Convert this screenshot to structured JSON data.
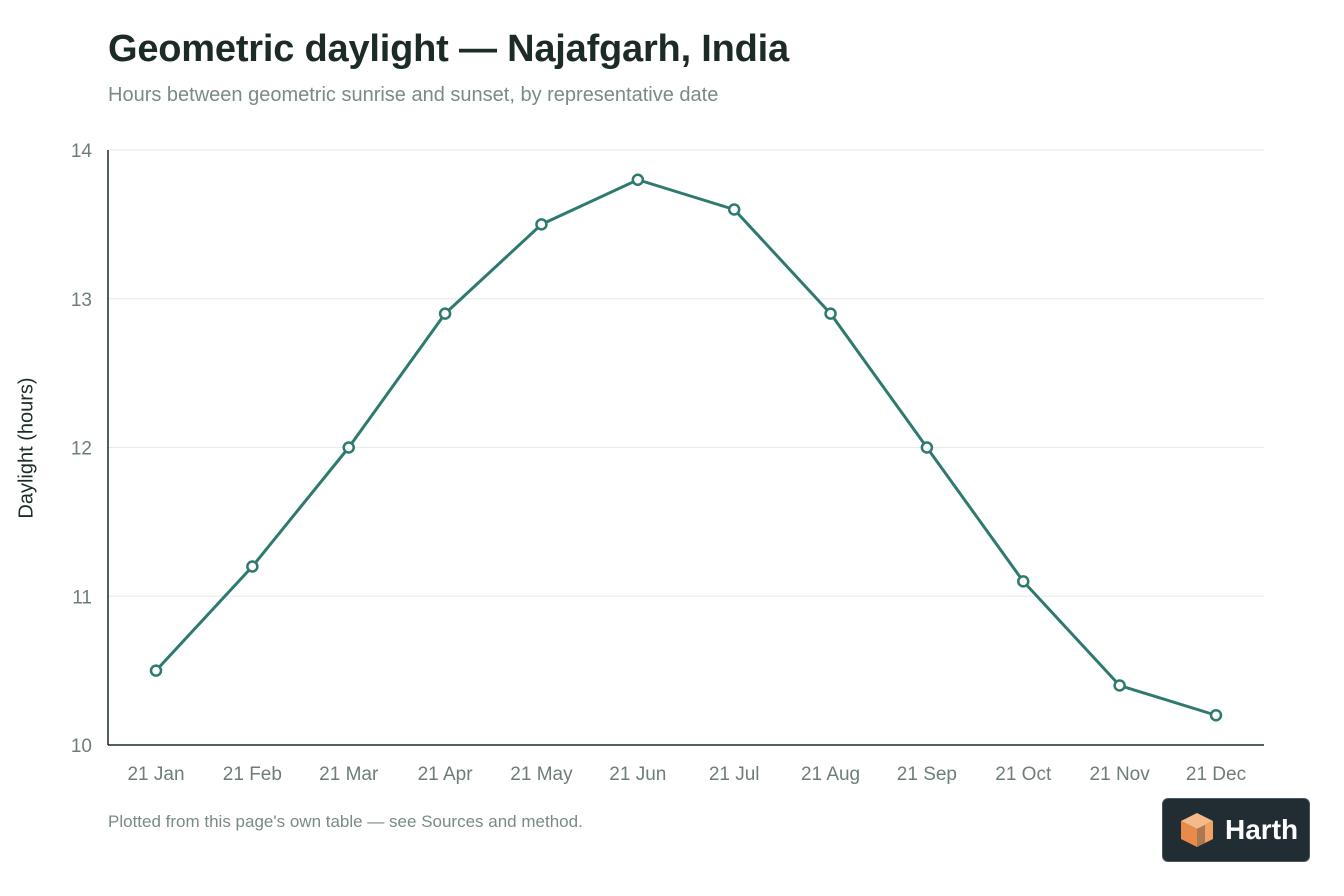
{
  "chart_data": {
    "type": "line",
    "title": "Geometric daylight — Najafgarh, India",
    "subtitle": "Hours between geometric sunrise and sunset, by representative date",
    "xlabel": "",
    "ylabel": "Daylight (hours)",
    "ylim": [
      10,
      14
    ],
    "yticks": [
      "10",
      "11",
      "12",
      "13",
      "14"
    ],
    "categories": [
      "21 Jan",
      "21 Feb",
      "21 Mar",
      "21 Apr",
      "21 May",
      "21 Jun",
      "21 Jul",
      "21 Aug",
      "21 Sep",
      "21 Oct",
      "21 Nov",
      "21 Dec"
    ],
    "series": [
      {
        "values": [
          10.5,
          11.2,
          12.0,
          12.9,
          13.5,
          13.8,
          13.6,
          12.9,
          12.0,
          11.1,
          10.4,
          10.2
        ]
      }
    ],
    "grid": true,
    "line_color": "#2e7a6e"
  },
  "footnote": "Plotted from this page's own table — see Sources and method.",
  "badge": {
    "label": "Harth",
    "icon": "cube-logo-icon"
  }
}
